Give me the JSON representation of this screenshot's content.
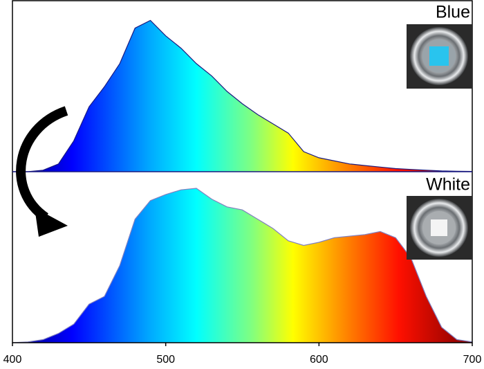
{
  "chart_data": [
    {
      "type": "area",
      "title": "Blue",
      "x": [
        400,
        410,
        420,
        430,
        440,
        450,
        460,
        470,
        480,
        490,
        500,
        510,
        520,
        530,
        540,
        550,
        560,
        570,
        580,
        590,
        600,
        610,
        620,
        630,
        640,
        650,
        660,
        670,
        680,
        690,
        700
      ],
      "values": [
        0,
        0,
        0.01,
        0.05,
        0.2,
        0.42,
        0.55,
        0.7,
        0.93,
        0.98,
        0.88,
        0.8,
        0.7,
        0.62,
        0.52,
        0.44,
        0.37,
        0.31,
        0.25,
        0.13,
        0.09,
        0.07,
        0.05,
        0.04,
        0.03,
        0.02,
        0.015,
        0.01,
        0.005,
        0.003,
        0.002
      ],
      "xlim": [
        400,
        700
      ],
      "ylim": [
        0,
        1
      ],
      "color": "#1a1a80"
    },
    {
      "type": "area",
      "title": "White",
      "x": [
        400,
        410,
        420,
        430,
        440,
        450,
        460,
        470,
        480,
        490,
        500,
        510,
        520,
        530,
        540,
        550,
        560,
        570,
        580,
        590,
        600,
        610,
        620,
        630,
        640,
        650,
        660,
        670,
        680,
        690,
        700
      ],
      "values": [
        0,
        0.005,
        0.02,
        0.06,
        0.12,
        0.25,
        0.3,
        0.5,
        0.8,
        0.92,
        0.96,
        0.99,
        1.0,
        0.93,
        0.88,
        0.86,
        0.8,
        0.74,
        0.66,
        0.63,
        0.65,
        0.68,
        0.69,
        0.7,
        0.72,
        0.68,
        0.55,
        0.3,
        0.1,
        0.02,
        0.005
      ],
      "xlim": [
        400,
        700
      ],
      "ylim": [
        0,
        1
      ],
      "xticks": [
        400,
        500,
        600,
        700
      ],
      "color": "#8080c0"
    }
  ]
}
